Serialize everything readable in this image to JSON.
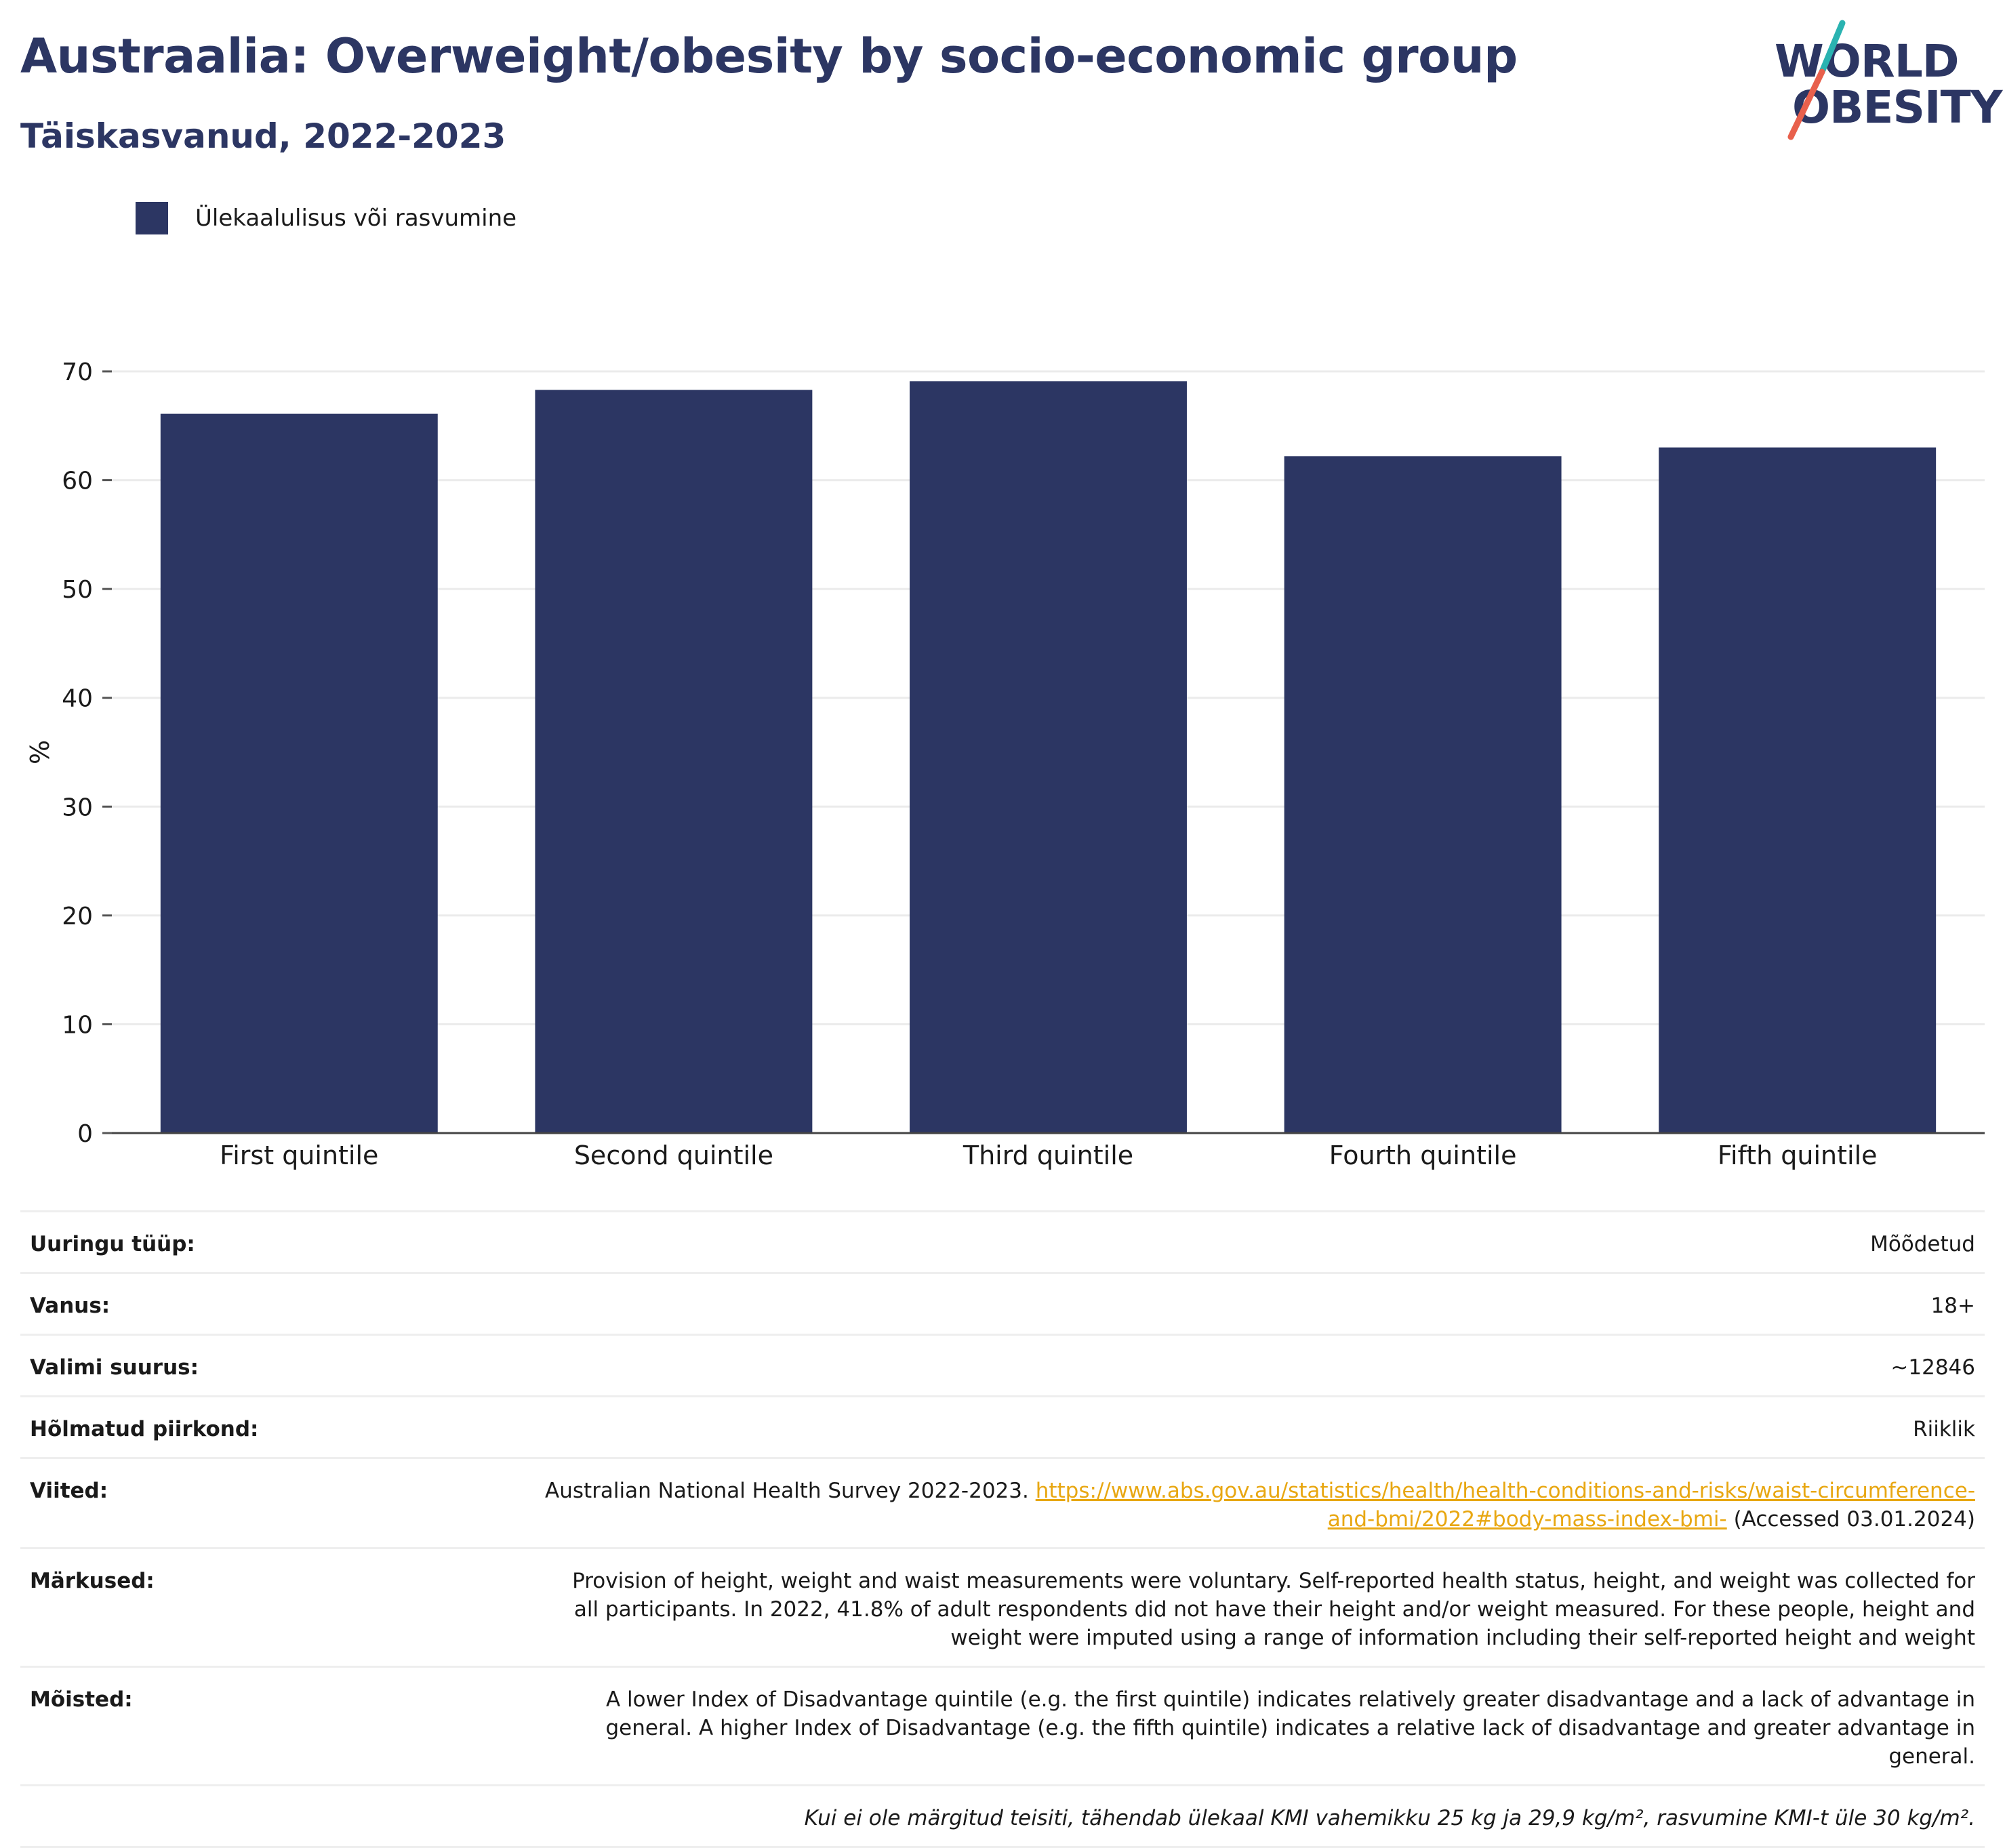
{
  "header": {
    "title": "Austraalia: Overweight/obesity by socio-economic group",
    "subtitle": "Täiskasvanud, 2022-2023"
  },
  "logo": {
    "line1": "WORLD",
    "line2": "OBESITY",
    "colors": {
      "text": "#2c3663",
      "slash_teal": "#2ab3b1",
      "slash_coral": "#e8604c"
    }
  },
  "chart_data": {
    "type": "bar",
    "title": "Austraalia: Overweight/obesity by socio-economic group",
    "subtitle": "Täiskasvanud, 2022-2023",
    "categories": [
      "First quintile",
      "Second quintile",
      "Third quintile",
      "Fourth quintile",
      "Fifth quintile"
    ],
    "series": [
      {
        "name": "Ülekaalulisus või rasvumine",
        "values": [
          66.1,
          68.3,
          69.1,
          62.2,
          63.0
        ],
        "color": "#2c3663"
      }
    ],
    "xlabel": "",
    "ylabel": "%",
    "ylim": [
      0,
      70
    ],
    "yticks": [
      0,
      10,
      20,
      30,
      40,
      50,
      60,
      70
    ],
    "grid": true,
    "legend_position": "top-left"
  },
  "details": [
    {
      "key": "Uuringu tüüp:",
      "value": "Mõõdetud"
    },
    {
      "key": "Vanus:",
      "value": "18+"
    },
    {
      "key": "Valimi suurus:",
      "value": "~12846"
    },
    {
      "key": "Hõlmatud piirkond:",
      "value": "Riiklik"
    }
  ],
  "references": {
    "key": "Viited:",
    "text_before": "Australian National Health Survey 2022-2023.",
    "link": "https://www.abs.gov.au/statistics/health/health-conditions-and-risks/waist-circumference-and-bmi/2022#body-mass-index-bmi-",
    "text_after": "(Accessed 03.01.2024)"
  },
  "notes": {
    "key": "Märkused:",
    "value": "Provision of height, weight and waist measurements were voluntary. Self-reported health status, height, and weight was collected for all participants. In 2022, 41.8% of adult respondents did not have their height and/or weight measured. For these people, height and weight were imputed using a range of information including their self-reported height and weight"
  },
  "definitions": {
    "key": "Mõisted:",
    "value": "A lower Index of Disadvantage quintile (e.g. the first quintile) indicates relatively greater disadvantage and a lack of advantage in general. A higher Index of Disadvantage (e.g. the fifth quintile) indicates a relative lack of disadvantage and greater advantage in general."
  },
  "footnote": "Kui ei ole märgitud teisiti, tähendab ülekaal KMI vahemikku 25 kg ja 29,9 kg/m², rasvumine KMI-t üle 30 kg/m²."
}
